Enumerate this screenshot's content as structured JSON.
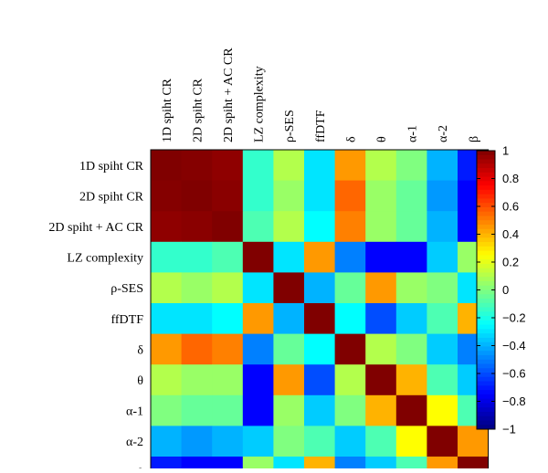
{
  "chart_data": {
    "type": "heatmap",
    "labels": [
      "1D spiht CR",
      "2D spiht CR",
      "2D spiht + AC CR",
      "LZ complexity",
      "ρ-SES",
      "ffDTF",
      "δ",
      "θ",
      "α-1",
      "α-2",
      "β"
    ],
    "values": [
      [
        1.0,
        0.99,
        0.97,
        -0.15,
        0.1,
        -0.3,
        0.45,
        0.1,
        0.0,
        -0.4,
        -0.7
      ],
      [
        0.99,
        1.0,
        0.98,
        -0.15,
        0.05,
        -0.3,
        0.55,
        0.05,
        -0.05,
        -0.45,
        -0.75
      ],
      [
        0.97,
        0.98,
        1.0,
        -0.1,
        0.1,
        -0.25,
        0.5,
        0.05,
        -0.05,
        -0.4,
        -0.75
      ],
      [
        -0.15,
        -0.15,
        -0.1,
        1.0,
        -0.3,
        0.45,
        -0.5,
        -0.75,
        -0.75,
        -0.35,
        0.05
      ],
      [
        0.1,
        0.05,
        0.1,
        -0.3,
        1.0,
        -0.4,
        -0.05,
        0.45,
        0.05,
        0.0,
        -0.3
      ],
      [
        -0.3,
        -0.3,
        -0.25,
        0.45,
        -0.4,
        1.0,
        -0.25,
        -0.6,
        -0.35,
        -0.1,
        0.4
      ],
      [
        0.45,
        0.55,
        0.5,
        -0.5,
        -0.05,
        -0.25,
        1.0,
        0.1,
        0.0,
        -0.35,
        -0.5
      ],
      [
        0.1,
        0.05,
        0.05,
        -0.75,
        0.45,
        -0.6,
        0.1,
        1.0,
        0.4,
        -0.1,
        -0.35
      ],
      [
        0.0,
        -0.05,
        -0.05,
        -0.75,
        0.05,
        -0.35,
        0.0,
        0.4,
        1.0,
        0.25,
        -0.1
      ],
      [
        -0.4,
        -0.45,
        -0.4,
        -0.35,
        0.0,
        -0.1,
        -0.35,
        -0.1,
        0.25,
        1.0,
        0.45
      ],
      [
        -0.7,
        -0.75,
        -0.75,
        0.05,
        -0.3,
        0.4,
        -0.5,
        -0.35,
        -0.1,
        0.45,
        1.0
      ]
    ],
    "colorbar": {
      "min": -1,
      "max": 1,
      "colormap": "jet",
      "ticks": [
        "1",
        "0.8",
        "0.6",
        "0.4",
        "0.2",
        "0",
        "−0.2",
        "−0.4",
        "−0.6",
        "−0.8",
        "−1"
      ]
    },
    "title": "",
    "grid": false
  }
}
